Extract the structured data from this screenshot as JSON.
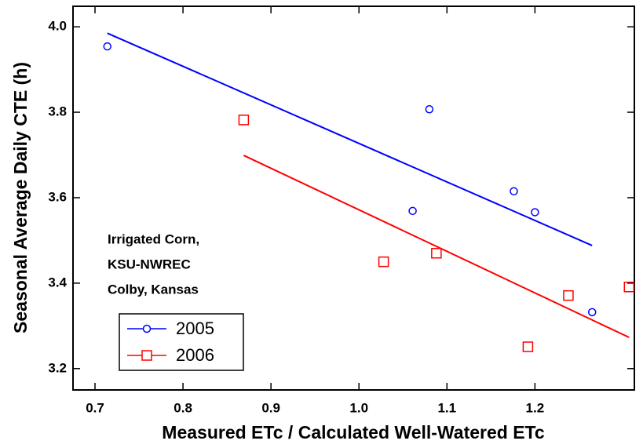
{
  "chart_data": {
    "type": "scatter",
    "x_label": "Measured ETc / Calculated Well-Watered ETc",
    "y_label": "Seasonal Average Daily CTE (h)",
    "annotation": [
      "Irrigated Corn,",
      "KSU-NWREC",
      "Colby, Kansas"
    ],
    "xlim": [
      0.675,
      1.313
    ],
    "ylim": [
      3.15,
      4.048
    ],
    "xticks": [
      0.7,
      0.8,
      0.9,
      {
        "value": 1,
        "label": "1.0"
      },
      1.1,
      1.2
    ],
    "yticks": [
      3.2,
      3.4,
      3.6,
      3.8,
      {
        "value": 4,
        "label": "4.0"
      }
    ],
    "series": [
      {
        "name": "2005",
        "color": "#0000ff",
        "marker": "circle",
        "x": [
          0.714,
          1.08,
          1.061,
          1.176,
          1.2,
          1.265
        ],
        "values": [
          3.954,
          3.807,
          3.569,
          3.615,
          3.566,
          3.332
        ],
        "fit_x": [
          0.714,
          1.265
        ],
        "fit_y": [
          3.985,
          3.488
        ]
      },
      {
        "name": "2006",
        "color": "#ff0000",
        "marker": "square",
        "x": [
          0.869,
          1.028,
          1.088,
          1.192,
          1.238,
          1.307
        ],
        "values": [
          3.782,
          3.45,
          3.47,
          3.251,
          3.371,
          3.391
        ],
        "fit_x": [
          0.869,
          1.307
        ],
        "fit_y": [
          3.699,
          3.273
        ]
      }
    ]
  }
}
